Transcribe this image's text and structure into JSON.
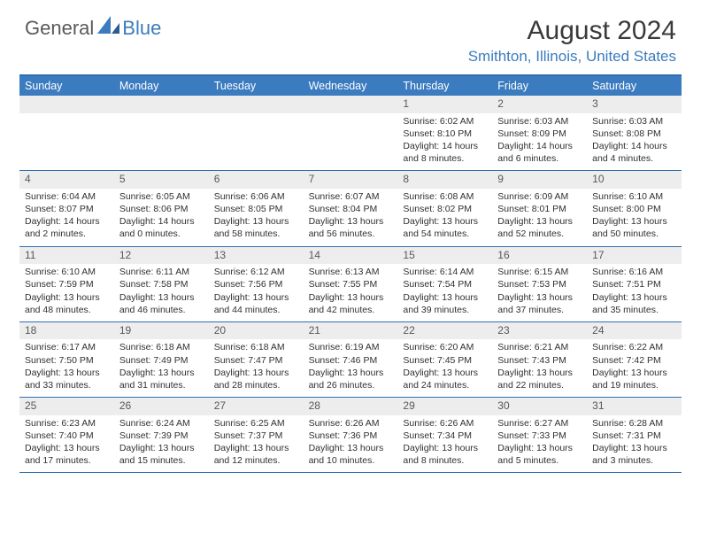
{
  "brand": {
    "first": "General",
    "second": "Blue"
  },
  "title": "August 2024",
  "location": "Smithton, Illinois, United States",
  "colors": {
    "header_bar": "#3b7bbf",
    "rule": "#2e6fb0",
    "daynum_bg": "#ededed",
    "text": "#303030",
    "title_text": "#3a3a3a",
    "logo_gray": "#5a5a5a"
  },
  "daynames": [
    "Sunday",
    "Monday",
    "Tuesday",
    "Wednesday",
    "Thursday",
    "Friday",
    "Saturday"
  ],
  "weeks": [
    [
      null,
      null,
      null,
      null,
      {
        "n": "1",
        "sr": "6:02 AM",
        "ss": "8:10 PM",
        "dl": "14 hours and 8 minutes."
      },
      {
        "n": "2",
        "sr": "6:03 AM",
        "ss": "8:09 PM",
        "dl": "14 hours and 6 minutes."
      },
      {
        "n": "3",
        "sr": "6:03 AM",
        "ss": "8:08 PM",
        "dl": "14 hours and 4 minutes."
      }
    ],
    [
      {
        "n": "4",
        "sr": "6:04 AM",
        "ss": "8:07 PM",
        "dl": "14 hours and 2 minutes."
      },
      {
        "n": "5",
        "sr": "6:05 AM",
        "ss": "8:06 PM",
        "dl": "14 hours and 0 minutes."
      },
      {
        "n": "6",
        "sr": "6:06 AM",
        "ss": "8:05 PM",
        "dl": "13 hours and 58 minutes."
      },
      {
        "n": "7",
        "sr": "6:07 AM",
        "ss": "8:04 PM",
        "dl": "13 hours and 56 minutes."
      },
      {
        "n": "8",
        "sr": "6:08 AM",
        "ss": "8:02 PM",
        "dl": "13 hours and 54 minutes."
      },
      {
        "n": "9",
        "sr": "6:09 AM",
        "ss": "8:01 PM",
        "dl": "13 hours and 52 minutes."
      },
      {
        "n": "10",
        "sr": "6:10 AM",
        "ss": "8:00 PM",
        "dl": "13 hours and 50 minutes."
      }
    ],
    [
      {
        "n": "11",
        "sr": "6:10 AM",
        "ss": "7:59 PM",
        "dl": "13 hours and 48 minutes."
      },
      {
        "n": "12",
        "sr": "6:11 AM",
        "ss": "7:58 PM",
        "dl": "13 hours and 46 minutes."
      },
      {
        "n": "13",
        "sr": "6:12 AM",
        "ss": "7:56 PM",
        "dl": "13 hours and 44 minutes."
      },
      {
        "n": "14",
        "sr": "6:13 AM",
        "ss": "7:55 PM",
        "dl": "13 hours and 42 minutes."
      },
      {
        "n": "15",
        "sr": "6:14 AM",
        "ss": "7:54 PM",
        "dl": "13 hours and 39 minutes."
      },
      {
        "n": "16",
        "sr": "6:15 AM",
        "ss": "7:53 PM",
        "dl": "13 hours and 37 minutes."
      },
      {
        "n": "17",
        "sr": "6:16 AM",
        "ss": "7:51 PM",
        "dl": "13 hours and 35 minutes."
      }
    ],
    [
      {
        "n": "18",
        "sr": "6:17 AM",
        "ss": "7:50 PM",
        "dl": "13 hours and 33 minutes."
      },
      {
        "n": "19",
        "sr": "6:18 AM",
        "ss": "7:49 PM",
        "dl": "13 hours and 31 minutes."
      },
      {
        "n": "20",
        "sr": "6:18 AM",
        "ss": "7:47 PM",
        "dl": "13 hours and 28 minutes."
      },
      {
        "n": "21",
        "sr": "6:19 AM",
        "ss": "7:46 PM",
        "dl": "13 hours and 26 minutes."
      },
      {
        "n": "22",
        "sr": "6:20 AM",
        "ss": "7:45 PM",
        "dl": "13 hours and 24 minutes."
      },
      {
        "n": "23",
        "sr": "6:21 AM",
        "ss": "7:43 PM",
        "dl": "13 hours and 22 minutes."
      },
      {
        "n": "24",
        "sr": "6:22 AM",
        "ss": "7:42 PM",
        "dl": "13 hours and 19 minutes."
      }
    ],
    [
      {
        "n": "25",
        "sr": "6:23 AM",
        "ss": "7:40 PM",
        "dl": "13 hours and 17 minutes."
      },
      {
        "n": "26",
        "sr": "6:24 AM",
        "ss": "7:39 PM",
        "dl": "13 hours and 15 minutes."
      },
      {
        "n": "27",
        "sr": "6:25 AM",
        "ss": "7:37 PM",
        "dl": "13 hours and 12 minutes."
      },
      {
        "n": "28",
        "sr": "6:26 AM",
        "ss": "7:36 PM",
        "dl": "13 hours and 10 minutes."
      },
      {
        "n": "29",
        "sr": "6:26 AM",
        "ss": "7:34 PM",
        "dl": "13 hours and 8 minutes."
      },
      {
        "n": "30",
        "sr": "6:27 AM",
        "ss": "7:33 PM",
        "dl": "13 hours and 5 minutes."
      },
      {
        "n": "31",
        "sr": "6:28 AM",
        "ss": "7:31 PM",
        "dl": "13 hours and 3 minutes."
      }
    ]
  ],
  "labels": {
    "sunrise": "Sunrise:",
    "sunset": "Sunset:",
    "daylight": "Daylight:"
  }
}
